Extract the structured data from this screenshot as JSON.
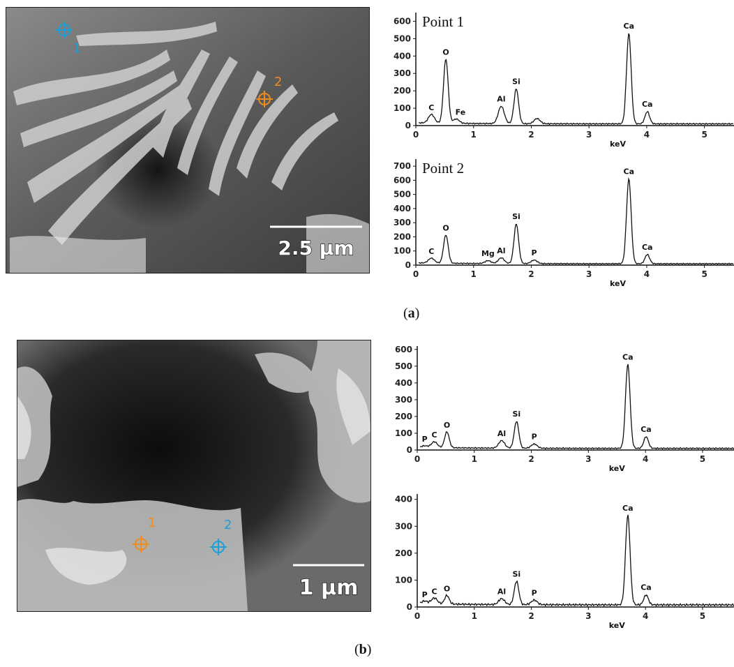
{
  "panel_a": {
    "caption_open": "(",
    "caption_letter": "a",
    "caption_close": ")",
    "sem": {
      "scale_bar_label": "2.5 µm",
      "marker_1": "1",
      "marker_2": "2",
      "marker_1_color": "#1aa0d8",
      "marker_2_color": "#f08c1e"
    }
  },
  "panel_b": {
    "caption_open": "(",
    "caption_letter": "b",
    "caption_close": ")",
    "sem": {
      "scale_bar_label": "1 µm",
      "marker_1": "1",
      "marker_2": "2",
      "marker_1_color": "#f08c1e",
      "marker_2_color": "#1aa0d8"
    }
  },
  "chart_data": [
    {
      "type": "line",
      "title": "Point 1",
      "xlabel": "keV",
      "ylabel": "",
      "xlim": [
        0,
        5.5
      ],
      "ylim": [
        0,
        650
      ],
      "x_ticks": [
        0,
        1,
        2,
        3,
        4,
        5
      ],
      "y_ticks": [
        0,
        100,
        200,
        300,
        400,
        500,
        600
      ],
      "baseline": 10,
      "peaks": [
        {
          "element": "C",
          "x": 0.27,
          "y": 60
        },
        {
          "element": "O",
          "x": 0.52,
          "y": 380
        },
        {
          "element": "Fe",
          "x": 0.7,
          "y": 35
        },
        {
          "element": "Al",
          "x": 1.48,
          "y": 110
        },
        {
          "element": "Si",
          "x": 1.74,
          "y": 210
        },
        {
          "element": "",
          "x": 2.1,
          "y": 40
        },
        {
          "element": "Ca",
          "x": 3.69,
          "y": 530
        },
        {
          "element": "Ca",
          "x": 4.01,
          "y": 80
        }
      ]
    },
    {
      "type": "line",
      "title": "Point 2",
      "xlabel": "keV",
      "ylabel": "",
      "xlim": [
        0,
        5.5
      ],
      "ylim": [
        0,
        750
      ],
      "x_ticks": [
        0,
        1,
        2,
        3,
        4,
        5
      ],
      "y_ticks": [
        0,
        100,
        200,
        300,
        400,
        500,
        600,
        700
      ],
      "baseline": 10,
      "peaks": [
        {
          "element": "C",
          "x": 0.27,
          "y": 45
        },
        {
          "element": "O",
          "x": 0.52,
          "y": 210
        },
        {
          "element": "Mg",
          "x": 1.25,
          "y": 30
        },
        {
          "element": "Al",
          "x": 1.48,
          "y": 50
        },
        {
          "element": "Si",
          "x": 1.74,
          "y": 290
        },
        {
          "element": "P",
          "x": 2.05,
          "y": 35
        },
        {
          "element": "Ca",
          "x": 3.69,
          "y": 610
        },
        {
          "element": "Ca",
          "x": 4.01,
          "y": 75
        }
      ]
    },
    {
      "type": "line",
      "title": "",
      "xlabel": "keV",
      "ylabel": "",
      "xlim": [
        0,
        5.6
      ],
      "ylim": [
        0,
        620
      ],
      "x_ticks": [
        0,
        1,
        2,
        3,
        4,
        5
      ],
      "y_ticks": [
        0,
        100,
        200,
        300,
        400,
        500,
        600
      ],
      "baseline": 10,
      "peaks": [
        {
          "element": "P",
          "x": 0.13,
          "y": 20
        },
        {
          "element": "C",
          "x": 0.3,
          "y": 45
        },
        {
          "element": "O",
          "x": 0.52,
          "y": 105
        },
        {
          "element": "Al",
          "x": 1.48,
          "y": 55
        },
        {
          "element": "Si",
          "x": 1.74,
          "y": 170
        },
        {
          "element": "P",
          "x": 2.05,
          "y": 35
        },
        {
          "element": "Ca",
          "x": 3.69,
          "y": 510
        },
        {
          "element": "Ca",
          "x": 4.01,
          "y": 80
        }
      ]
    },
    {
      "type": "line",
      "title": "",
      "xlabel": "keV",
      "ylabel": "",
      "xlim": [
        0,
        5.6
      ],
      "ylim": [
        0,
        420
      ],
      "x_ticks": [
        0,
        1,
        2,
        3,
        4,
        5
      ],
      "y_ticks": [
        0,
        100,
        200,
        300,
        400
      ],
      "baseline": 8,
      "peaks": [
        {
          "element": "P",
          "x": 0.13,
          "y": 18
        },
        {
          "element": "C",
          "x": 0.3,
          "y": 30
        },
        {
          "element": "O",
          "x": 0.52,
          "y": 40
        },
        {
          "element": "Al",
          "x": 1.48,
          "y": 30
        },
        {
          "element": "Si",
          "x": 1.74,
          "y": 95
        },
        {
          "element": "P",
          "x": 2.05,
          "y": 25
        },
        {
          "element": "Ca",
          "x": 3.69,
          "y": 340
        },
        {
          "element": "Ca",
          "x": 4.01,
          "y": 45
        }
      ]
    }
  ]
}
